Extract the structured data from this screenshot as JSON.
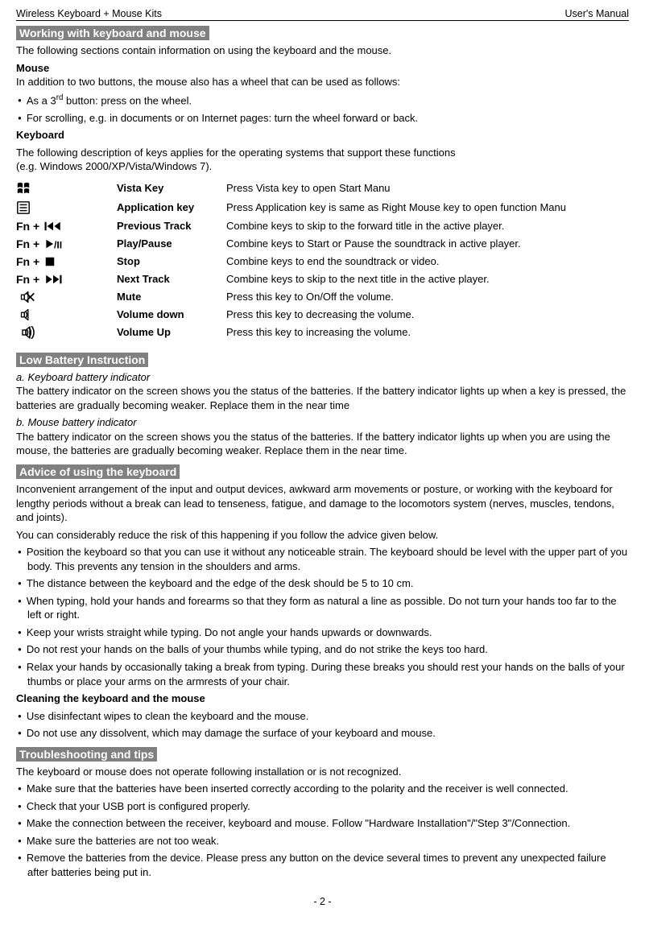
{
  "header": {
    "left": "Wireless Keyboard + Mouse Kits",
    "right": "User's Manual"
  },
  "sections": {
    "working": {
      "title": "Working with keyboard and mouse",
      "intro": "The following sections contain information on using the keyboard and the mouse.",
      "mouse_heading": "Mouse",
      "mouse_intro": "In addition to two buttons, the mouse also has a wheel that can be used as follows:",
      "mouse_bullet1": "As a 3rd button: press on the wheel.",
      "mouse_bullet2": "For scrolling, e.g. in documents or on Internet pages: turn the wheel forward or back.",
      "keyboard_heading": "Keyboard",
      "keyboard_intro1": "The following description of keys applies for the operating systems that support these functions",
      "keyboard_intro2": "(e.g. Windows 2000/XP/Vista/Windows 7)."
    },
    "keys": [
      {
        "icon": "windows",
        "prefix": "",
        "name": "Vista Key",
        "desc": "Press Vista key to open Start Manu"
      },
      {
        "icon": "menu",
        "prefix": "",
        "name": "Application key",
        "desc": "Press Application key is same as Right Mouse key to open function Manu"
      },
      {
        "icon": "prev",
        "prefix": "Fn +",
        "name": "Previous Track",
        "desc": "Combine keys to skip to the forward title in the active player."
      },
      {
        "icon": "playpause",
        "prefix": "Fn +",
        "name": "Play/Pause",
        "desc": "Combine keys to Start or Pause the soundtrack in active player."
      },
      {
        "icon": "stop",
        "prefix": "Fn +",
        "name": "Stop",
        "desc": "Combine keys to end the soundtrack or video."
      },
      {
        "icon": "next",
        "prefix": "Fn +",
        "name": "Next Track",
        "desc": "Combine keys to skip to the next title in the active player."
      },
      {
        "icon": "mute",
        "prefix": "",
        "name": "Mute",
        "desc": "Press this key to On/Off the volume."
      },
      {
        "icon": "voldown",
        "prefix": "",
        "name": "Volume down",
        "desc": "Press this key to decreasing the volume."
      },
      {
        "icon": "volup",
        "prefix": "",
        "name": "Volume Up",
        "desc": "Press this key to increasing the volume."
      }
    ],
    "lowbatt": {
      "title": "Low Battery Instruction",
      "a_head": "a. Keyboard battery indicator",
      "a_body": "The battery indicator on the screen shows you the status of the batteries. If the battery indicator lights up when a key is pressed, the batteries are gradually becoming weaker. Replace them in the near time",
      "b_head": "b. Mouse battery indicator",
      "b_body": "The battery indicator on the screen shows you the status of the batteries. If the battery indicator lights up when you are using the mouse, the batteries are gradually becoming weaker. Replace them in the near time."
    },
    "advice": {
      "title": "Advice of using the keyboard",
      "p1": "Inconvenient arrangement of the input and output devices, awkward arm movements or posture, or working with the keyboard for lengthy periods without a break can lead to tenseness, fatigue, and damage to the locomotors system (nerves, muscles, tendons, and joints).",
      "p2": "You can considerably reduce the risk of this happening if you follow the advice given below.",
      "bullets": [
        "Position the keyboard so that you can use it without any noticeable strain. The keyboard should be level with the upper part of you body. This prevents any tension in the shoulders and arms.",
        "The distance between the keyboard and the edge of the desk should be 5 to 10 cm.",
        "When typing, hold your hands and forearms so that they form as natural a line as possible. Do not turn your hands too far to the left or right.",
        "Keep your wrists straight while typing. Do not angle your hands upwards or downwards.",
        "Do not rest your hands on the balls of your thumbs while typing, and do not strike the keys too hard.",
        "Relax your hands by occasionally taking a break from typing. During these breaks you should rest your hands on the balls of your thumbs or place your arms on the armrests of your chair."
      ],
      "clean_head": "Cleaning the keyboard and the mouse",
      "clean_bullets": [
        "Use disinfectant wipes to clean the keyboard and the mouse.",
        "Do not use any dissolvent, which may damage the surface of your keyboard and mouse."
      ]
    },
    "trouble": {
      "title": "Troubleshooting and tips",
      "p1": "The keyboard or mouse does not operate following installation or is not recognized.",
      "bullets": [
        "Make sure that the batteries have been inserted correctly according to the polarity and the receiver is well connected.",
        "Check that your USB port is configured properly.",
        "Make the connection between the receiver, keyboard and mouse. Follow \"Hardware Installation\"/\"Step 3\"/Connection.",
        "Make sure the batteries are not too weak.",
        "Remove the batteries from the device. Please press any button on the device several times to prevent any unexpected failure after batteries being put in."
      ]
    }
  },
  "footer": "- 2 -",
  "colors": {
    "section_bg": "#808080",
    "section_fg": "#ffffff"
  }
}
